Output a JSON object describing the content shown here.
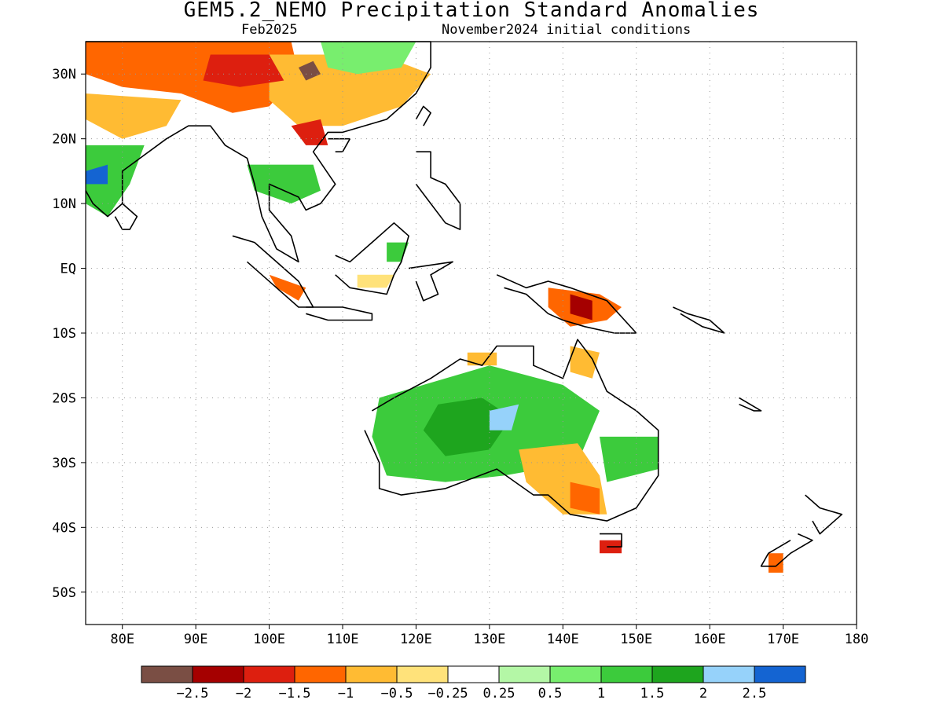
{
  "title": "GEM5.2_NEMO Precipitation Standard Anomalies",
  "subtitle_left": "Feb2025",
  "subtitle_right": "November2024 initial conditions",
  "map": {
    "lon_range": [
      75,
      180
    ],
    "lat_range": [
      -55,
      35
    ],
    "x_ticks": [
      {
        "value": 80,
        "label": "80E"
      },
      {
        "value": 90,
        "label": "90E"
      },
      {
        "value": 100,
        "label": "100E"
      },
      {
        "value": 110,
        "label": "110E"
      },
      {
        "value": 120,
        "label": "120E"
      },
      {
        "value": 130,
        "label": "130E"
      },
      {
        "value": 140,
        "label": "140E"
      },
      {
        "value": 150,
        "label": "150E"
      },
      {
        "value": 160,
        "label": "160E"
      },
      {
        "value": 170,
        "label": "170E"
      },
      {
        "value": 180,
        "label": "180"
      }
    ],
    "y_ticks": [
      {
        "value": 30,
        "label": "30N"
      },
      {
        "value": 20,
        "label": "20N"
      },
      {
        "value": 10,
        "label": "10N"
      },
      {
        "value": 0,
        "label": "EQ"
      },
      {
        "value": -10,
        "label": "10S"
      },
      {
        "value": -20,
        "label": "20S"
      },
      {
        "value": -30,
        "label": "30S"
      },
      {
        "value": -40,
        "label": "40S"
      },
      {
        "value": -50,
        "label": "50S"
      }
    ],
    "grid": "dotted"
  },
  "legend": {
    "colors": [
      "#7a4e44",
      "#a50000",
      "#dd1f0f",
      "#ff6600",
      "#ffbb33",
      "#ffe27a",
      "#ffffff",
      "#b4f7a6",
      "#78ee6e",
      "#3ccb3c",
      "#1ea51e",
      "#96d2fa",
      "#1464d2"
    ],
    "labels": [
      "−2.5",
      "−2",
      "−1.5",
      "−1",
      "−0.5",
      "−0.25",
      "0.25",
      "0.5",
      "1",
      "1.5",
      "2",
      "2.5"
    ]
  },
  "regions": [
    {
      "name": "tibet-himalaya",
      "level": 3,
      "pts": [
        [
          75,
          35
        ],
        [
          103,
          35
        ],
        [
          104,
          30
        ],
        [
          100,
          25
        ],
        [
          95,
          24
        ],
        [
          88,
          27
        ],
        [
          80,
          28
        ],
        [
          75,
          30
        ]
      ]
    },
    {
      "name": "china-east",
      "level": 4,
      "pts": [
        [
          100,
          33
        ],
        [
          115,
          33
        ],
        [
          122,
          30
        ],
        [
          118,
          25
        ],
        [
          110,
          22
        ],
        [
          104,
          22
        ],
        [
          100,
          26
        ]
      ]
    },
    {
      "name": "tibet-core",
      "level": 2,
      "pts": [
        [
          92,
          33
        ],
        [
          100,
          33
        ],
        [
          102,
          29
        ],
        [
          96,
          28
        ],
        [
          91,
          29
        ]
      ]
    },
    {
      "name": "tibet-max",
      "level": 0,
      "pts": [
        [
          104,
          31
        ],
        [
          106,
          32
        ],
        [
          107,
          30
        ],
        [
          105,
          29
        ]
      ]
    },
    {
      "name": "n-china-wet",
      "level": 8,
      "pts": [
        [
          107,
          35
        ],
        [
          120,
          35
        ],
        [
          118,
          31
        ],
        [
          112,
          30
        ],
        [
          108,
          31
        ]
      ]
    },
    {
      "name": "w-india",
      "level": 4,
      "pts": [
        [
          75,
          27
        ],
        [
          88,
          26
        ],
        [
          86,
          22
        ],
        [
          80,
          20
        ],
        [
          75,
          23
        ]
      ]
    },
    {
      "name": "s-india-wet",
      "level": 9,
      "pts": [
        [
          75,
          19
        ],
        [
          83,
          19
        ],
        [
          81,
          13
        ],
        [
          78,
          8
        ],
        [
          75,
          10
        ]
      ]
    },
    {
      "name": "s-india-blue",
      "level": 12,
      "pts": [
        [
          75,
          15
        ],
        [
          78,
          16
        ],
        [
          78,
          13
        ],
        [
          75,
          13
        ]
      ]
    },
    {
      "name": "indochina-wet",
      "level": 9,
      "pts": [
        [
          97,
          16
        ],
        [
          106,
          16
        ],
        [
          107,
          12
        ],
        [
          103,
          10
        ],
        [
          98,
          12
        ]
      ]
    },
    {
      "name": "s-china-dry",
      "level": 2,
      "pts": [
        [
          103,
          22
        ],
        [
          107,
          23
        ],
        [
          108,
          19
        ],
        [
          105,
          19
        ]
      ]
    },
    {
      "name": "sumatra-dry",
      "level": 3,
      "pts": [
        [
          100,
          -1
        ],
        [
          105,
          -3
        ],
        [
          104,
          -5
        ],
        [
          101,
          -3
        ]
      ]
    },
    {
      "name": "borneo-dry",
      "level": 5,
      "pts": [
        [
          112,
          -1
        ],
        [
          117,
          -1
        ],
        [
          116,
          -3
        ],
        [
          112,
          -3
        ]
      ]
    },
    {
      "name": "borneo-wet",
      "level": 9,
      "pts": [
        [
          116,
          4
        ],
        [
          119,
          4
        ],
        [
          118,
          1
        ],
        [
          116,
          1
        ]
      ]
    },
    {
      "name": "png-dry",
      "level": 3,
      "pts": [
        [
          138,
          -3
        ],
        [
          145,
          -4
        ],
        [
          148,
          -6
        ],
        [
          146,
          -8
        ],
        [
          141,
          -9
        ],
        [
          138,
          -6
        ]
      ]
    },
    {
      "name": "png-max",
      "level": 1,
      "pts": [
        [
          141,
          -4
        ],
        [
          144,
          -5
        ],
        [
          144,
          -8
        ],
        [
          141,
          -7
        ]
      ]
    },
    {
      "name": "aus-wet",
      "level": 9,
      "pts": [
        [
          115,
          -20
        ],
        [
          130,
          -15
        ],
        [
          140,
          -18
        ],
        [
          145,
          -22
        ],
        [
          142,
          -30
        ],
        [
          132,
          -32
        ],
        [
          124,
          -33
        ],
        [
          116,
          -32
        ],
        [
          114,
          -26
        ]
      ]
    },
    {
      "name": "aus-center-wet",
      "level": 10,
      "pts": [
        [
          123,
          -21
        ],
        [
          129,
          -20
        ],
        [
          133,
          -23
        ],
        [
          130,
          -28
        ],
        [
          124,
          -29
        ],
        [
          121,
          -25
        ]
      ]
    },
    {
      "name": "aus-blue",
      "level": 11,
      "pts": [
        [
          130,
          -22
        ],
        [
          134,
          -21
        ],
        [
          133,
          -25
        ],
        [
          130,
          -25
        ]
      ]
    },
    {
      "name": "aus-east-wet",
      "level": 9,
      "pts": [
        [
          145,
          -26
        ],
        [
          153,
          -26
        ],
        [
          153,
          -31
        ],
        [
          146,
          -33
        ]
      ]
    },
    {
      "name": "aus-se-dry",
      "level": 4,
      "pts": [
        [
          134,
          -28
        ],
        [
          142,
          -27
        ],
        [
          145,
          -32
        ],
        [
          146,
          -38
        ],
        [
          140,
          -38
        ],
        [
          135,
          -33
        ]
      ]
    },
    {
      "name": "aus-se-core",
      "level": 3,
      "pts": [
        [
          141,
          -33
        ],
        [
          145,
          -34
        ],
        [
          145,
          -38
        ],
        [
          141,
          -37
        ]
      ]
    },
    {
      "name": "aus-ne-dry",
      "level": 4,
      "pts": [
        [
          141,
          -12
        ],
        [
          145,
          -13
        ],
        [
          144,
          -17
        ],
        [
          141,
          -16
        ]
      ]
    },
    {
      "name": "aus-n-dry",
      "level": 4,
      "pts": [
        [
          127,
          -13
        ],
        [
          131,
          -13
        ],
        [
          131,
          -15
        ],
        [
          127,
          -15
        ]
      ]
    },
    {
      "name": "nz-dry",
      "level": 3,
      "pts": [
        [
          168,
          -44
        ],
        [
          170,
          -44
        ],
        [
          170,
          -47
        ],
        [
          168,
          -47
        ]
      ]
    },
    {
      "name": "tasmania-dry",
      "level": 2,
      "pts": [
        [
          145,
          -42
        ],
        [
          148,
          -42
        ],
        [
          148,
          -44
        ],
        [
          145,
          -44
        ]
      ]
    }
  ],
  "coastlines": [
    {
      "name": "asia-mainland",
      "pts": [
        [
          75,
          35
        ],
        [
          122,
          35
        ],
        [
          122,
          31
        ],
        [
          120,
          27
        ],
        [
          116,
          23
        ],
        [
          110,
          21
        ],
        [
          108,
          21
        ],
        [
          106,
          18
        ],
        [
          109,
          13
        ],
        [
          107,
          10
        ],
        [
          105,
          9
        ],
        [
          104,
          11
        ],
        [
          102,
          12
        ],
        [
          100,
          13
        ],
        [
          100,
          9
        ],
        [
          103,
          5
        ],
        [
          104,
          1
        ],
        [
          101,
          3
        ],
        [
          99,
          8
        ],
        [
          98,
          13
        ],
        [
          97,
          17
        ],
        [
          94,
          19
        ],
        [
          92,
          22
        ],
        [
          89,
          22
        ],
        [
          86,
          20
        ],
        [
          80,
          15
        ],
        [
          80,
          10
        ],
        [
          78,
          8
        ],
        [
          76,
          10
        ],
        [
          75,
          12
        ]
      ]
    },
    {
      "name": "sumatra",
      "pts": [
        [
          95,
          5
        ],
        [
          98,
          4
        ],
        [
          104,
          -2
        ],
        [
          106,
          -6
        ],
        [
          104,
          -6
        ],
        [
          101,
          -3
        ],
        [
          97,
          1
        ]
      ]
    },
    {
      "name": "java",
      "pts": [
        [
          105,
          -6
        ],
        [
          110,
          -6
        ],
        [
          114,
          -7
        ],
        [
          114,
          -8
        ],
        [
          108,
          -8
        ],
        [
          105,
          -7
        ]
      ]
    },
    {
      "name": "borneo",
      "pts": [
        [
          109,
          2
        ],
        [
          111,
          1
        ],
        [
          114,
          4
        ],
        [
          117,
          7
        ],
        [
          119,
          5
        ],
        [
          118,
          1
        ],
        [
          117,
          -1
        ],
        [
          116,
          -4
        ],
        [
          111,
          -3
        ],
        [
          109,
          -1
        ]
      ]
    },
    {
      "name": "sulawesi",
      "pts": [
        [
          119,
          0
        ],
        [
          125,
          1
        ],
        [
          122,
          -1
        ],
        [
          123,
          -4
        ],
        [
          121,
          -5
        ],
        [
          120,
          -2
        ]
      ]
    },
    {
      "name": "philippines",
      "pts": [
        [
          120,
          18
        ],
        [
          122,
          18
        ],
        [
          122,
          14
        ],
        [
          124,
          13
        ],
        [
          126,
          10
        ],
        [
          126,
          6
        ],
        [
          124,
          7
        ],
        [
          122,
          10
        ],
        [
          120,
          13
        ]
      ]
    },
    {
      "name": "taiwan",
      "pts": [
        [
          120,
          23
        ],
        [
          121,
          25
        ],
        [
          122,
          24
        ],
        [
          121,
          22
        ]
      ]
    },
    {
      "name": "hainan",
      "pts": [
        [
          108,
          20
        ],
        [
          111,
          20
        ],
        [
          110,
          18
        ],
        [
          109,
          18
        ]
      ]
    },
    {
      "name": "sri-lanka",
      "pts": [
        [
          80,
          10
        ],
        [
          82,
          8
        ],
        [
          81,
          6
        ],
        [
          80,
          6
        ],
        [
          79,
          8
        ]
      ]
    },
    {
      "name": "new-guinea",
      "pts": [
        [
          131,
          -1
        ],
        [
          135,
          -3
        ],
        [
          138,
          -2
        ],
        [
          141,
          -3
        ],
        [
          146,
          -5
        ],
        [
          150,
          -10
        ],
        [
          147,
          -10
        ],
        [
          143,
          -9
        ],
        [
          140,
          -8
        ],
        [
          138,
          -7
        ],
        [
          135,
          -4
        ],
        [
          132,
          -3
        ]
      ]
    },
    {
      "name": "australia",
      "pts": [
        [
          114,
          -22
        ],
        [
          117,
          -20
        ],
        [
          122,
          -17
        ],
        [
          126,
          -14
        ],
        [
          129,
          -15
        ],
        [
          131,
          -12
        ],
        [
          136,
          -12
        ],
        [
          136,
          -15
        ],
        [
          140,
          -17
        ],
        [
          142,
          -11
        ],
        [
          144,
          -14
        ],
        [
          146,
          -19
        ],
        [
          150,
          -22
        ],
        [
          153,
          -25
        ],
        [
          153,
          -32
        ],
        [
          150,
          -37
        ],
        [
          146,
          -39
        ],
        [
          141,
          -38
        ],
        [
          138,
          -35
        ],
        [
          136,
          -35
        ],
        [
          131,
          -31
        ],
        [
          124,
          -34
        ],
        [
          118,
          -35
        ],
        [
          115,
          -34
        ],
        [
          115,
          -30
        ],
        [
          113,
          -25
        ]
      ]
    },
    {
      "name": "tasmania",
      "pts": [
        [
          145,
          -41
        ],
        [
          148,
          -41
        ],
        [
          148,
          -43
        ],
        [
          146,
          -43
        ]
      ]
    },
    {
      "name": "nz-north",
      "pts": [
        [
          173,
          -35
        ],
        [
          175,
          -37
        ],
        [
          178,
          -38
        ],
        [
          176,
          -40
        ],
        [
          175,
          -41
        ],
        [
          174,
          -39
        ]
      ]
    },
    {
      "name": "nz-south",
      "pts": [
        [
          172,
          -41
        ],
        [
          174,
          -42
        ],
        [
          171,
          -44
        ],
        [
          169,
          -46
        ],
        [
          167,
          -46
        ],
        [
          168,
          -44
        ],
        [
          171,
          -42
        ]
      ]
    },
    {
      "name": "solomon-is",
      "pts": [
        [
          155,
          -6
        ],
        [
          157,
          -7
        ],
        [
          160,
          -8
        ],
        [
          162,
          -10
        ],
        [
          159,
          -9
        ],
        [
          156,
          -7
        ]
      ]
    },
    {
      "name": "new-caledonia",
      "pts": [
        [
          164,
          -20
        ],
        [
          167,
          -22
        ],
        [
          166,
          -22
        ],
        [
          164,
          -21
        ]
      ]
    }
  ]
}
